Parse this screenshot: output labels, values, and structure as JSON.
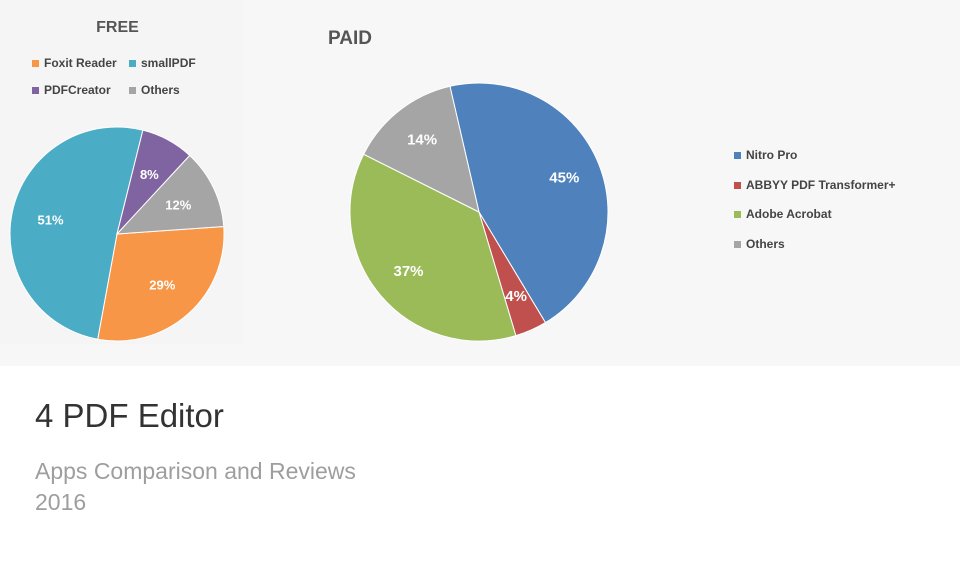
{
  "chart_data": [
    {
      "type": "pie",
      "title": "FREE",
      "series": [
        {
          "name": "Foxit Reader",
          "value": 29,
          "label": "29%",
          "color": "#f79646"
        },
        {
          "name": "smallPDF",
          "value": 51,
          "label": "51%",
          "color": "#4bacc6"
        },
        {
          "name": "PDFCreator",
          "value": 8,
          "label": "8%",
          "color": "#8064a2"
        },
        {
          "name": "Others",
          "value": 12,
          "label": "12%",
          "color": "#a5a5a5"
        }
      ],
      "legend_position": "top"
    },
    {
      "type": "pie",
      "title": "PAID",
      "series": [
        {
          "name": "Nitro Pro",
          "value": 45,
          "label": "45%",
          "color": "#4f81bd"
        },
        {
          "name": "ABBYY PDF Transformer+",
          "value": 4,
          "label": "4%",
          "color": "#c0504d"
        },
        {
          "name": "Adobe Acrobat",
          "value": 37,
          "label": "37%",
          "color": "#9bbb59"
        },
        {
          "name": "Others",
          "value": 14,
          "label": "14%",
          "color": "#a5a5a5"
        }
      ],
      "legend_position": "right"
    }
  ],
  "footer": {
    "title": "4 PDF Editor",
    "subtitle": "Apps Comparison and Reviews",
    "year": "2016"
  }
}
